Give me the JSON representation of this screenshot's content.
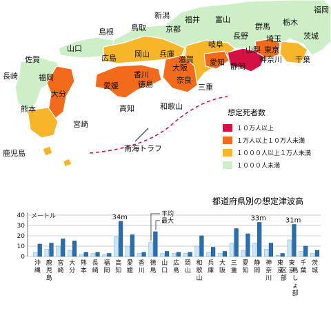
{
  "map": {
    "prefecture_labels": [
      {
        "text": "福岡",
        "x": 465,
        "y": 8,
        "key": "fukushima"
      },
      {
        "text": "新潟",
        "x": 224,
        "y": 12
      },
      {
        "text": "鳥取",
        "x": 190,
        "y": 30
      },
      {
        "text": "福井",
        "x": 269,
        "y": 20
      },
      {
        "text": "富山",
        "x": 310,
        "y": 20
      },
      {
        "text": "群馬",
        "x": 372,
        "y": 30
      },
      {
        "text": "栃木",
        "x": 410,
        "y": 24
      },
      {
        "text": "島根",
        "x": 145,
        "y": 38
      },
      {
        "text": "京都",
        "x": 240,
        "y": 33
      },
      {
        "text": "長野",
        "x": 340,
        "y": 42
      },
      {
        "text": "埼玉",
        "x": 385,
        "y": 48
      },
      {
        "text": "茨城",
        "x": 438,
        "y": 43
      },
      {
        "text": "山口",
        "x": 98,
        "y": 62
      },
      {
        "text": "岐阜",
        "x": 303,
        "y": 56
      },
      {
        "text": "東京",
        "x": 382,
        "y": 62
      },
      {
        "text": "山梨",
        "x": 355,
        "y": 63
      },
      {
        "text": "神奈川",
        "x": 380,
        "y": 75
      },
      {
        "text": "佐賀",
        "x": 40,
        "y": 76
      },
      {
        "text": "広島",
        "x": 148,
        "y": 74
      },
      {
        "text": "岡山",
        "x": 194,
        "y": 68
      },
      {
        "text": "兵庫",
        "x": 230,
        "y": 70
      },
      {
        "text": "滋賀",
        "x": 257,
        "y": 75
      },
      {
        "text": "千葉",
        "x": 428,
        "y": 75
      },
      {
        "text": "長崎",
        "x": 5,
        "y": 100
      },
      {
        "text": "福岡",
        "x": 56,
        "y": 103
      },
      {
        "text": "香川",
        "x": 195,
        "y": 98
      },
      {
        "text": "大阪",
        "x": 255,
        "y": 88
      },
      {
        "text": "愛知",
        "x": 304,
        "y": 80
      },
      {
        "text": "静岡",
        "x": 333,
        "y": 88
      },
      {
        "text": "大分",
        "x": 74,
        "y": 127
      },
      {
        "text": "愛媛",
        "x": 150,
        "y": 115
      },
      {
        "text": "徳島",
        "x": 200,
        "y": 112
      },
      {
        "text": "奈良",
        "x": 256,
        "y": 106
      },
      {
        "text": "三重",
        "x": 285,
        "y": 115
      },
      {
        "text": "熊本",
        "x": 30,
        "y": 148
      },
      {
        "text": "高知",
        "x": 173,
        "y": 148
      },
      {
        "text": "和歌山",
        "x": 232,
        "y": 144
      },
      {
        "text": "宮崎",
        "x": 105,
        "y": 170
      },
      {
        "text": "鹿児島",
        "x": 5,
        "y": 213
      }
    ],
    "trough_label": "南海トラフ",
    "legend_title": "想定死者数",
    "legend": [
      {
        "label": "１０万人以上",
        "color": "#d31145"
      },
      {
        "label": "１万人以上１０万人未満",
        "color": "#f26b1d"
      },
      {
        "label": "１０００人以上１万人未満",
        "color": "#f7b52a"
      },
      {
        "label": "１０００人未満",
        "color": "#cdeec7"
      }
    ]
  },
  "chart_data": {
    "type": "bar",
    "title": "都道府県別の想定津波高",
    "ylabel": "メートル",
    "ylim": [
      0,
      40
    ],
    "yticks": [
      0,
      10,
      20,
      30,
      40
    ],
    "grid": true,
    "categories": [
      "沖縄",
      "鹿児島",
      "宮崎",
      "大分",
      "熊本",
      "長崎",
      "福岡",
      "高知",
      "愛媛",
      "香川",
      "徳島",
      "山口",
      "広島",
      "岡山",
      "和歌山",
      "兵庫",
      "大阪",
      "三重",
      "愛知",
      "静岡",
      "神奈川",
      "東京（区部）",
      "東京（島しょ部）",
      "千葉",
      "茨城"
    ],
    "category_labels": [
      "沖縄",
      "鹿児島",
      "宮崎",
      "大分",
      "熊本",
      "長崎",
      "福岡",
      "高知",
      "愛媛",
      "香川",
      "徳島",
      "山口",
      "広島",
      "岡山",
      "和歌山",
      "兵庫",
      "大阪",
      "三重",
      "愛知",
      "静岡",
      "神奈川",
      "東京 区部",
      "東京 島しょ部",
      "千葉",
      "茨城"
    ],
    "series": [
      {
        "name": "平均",
        "color": "#cde6f4",
        "values": [
          4,
          7,
          10,
          6,
          2,
          3,
          2,
          19,
          10,
          3,
          14,
          3,
          3,
          3,
          10,
          4,
          3,
          13,
          6,
          13,
          7,
          1,
          16,
          5,
          3
        ]
      },
      {
        "name": "最大",
        "color": "#2a6fad",
        "values": [
          12,
          13,
          17,
          15,
          4,
          4,
          3,
          34,
          21,
          4,
          24,
          5,
          4,
          4,
          20,
          9,
          5,
          27,
          22,
          33,
          13,
          3,
          31,
          10,
          6
        ]
      }
    ],
    "peak_labels": [
      {
        "category_index": 7,
        "text": "34m"
      },
      {
        "category_index": 19,
        "text": "33m"
      },
      {
        "category_index": 22,
        "text": "31m"
      }
    ]
  }
}
